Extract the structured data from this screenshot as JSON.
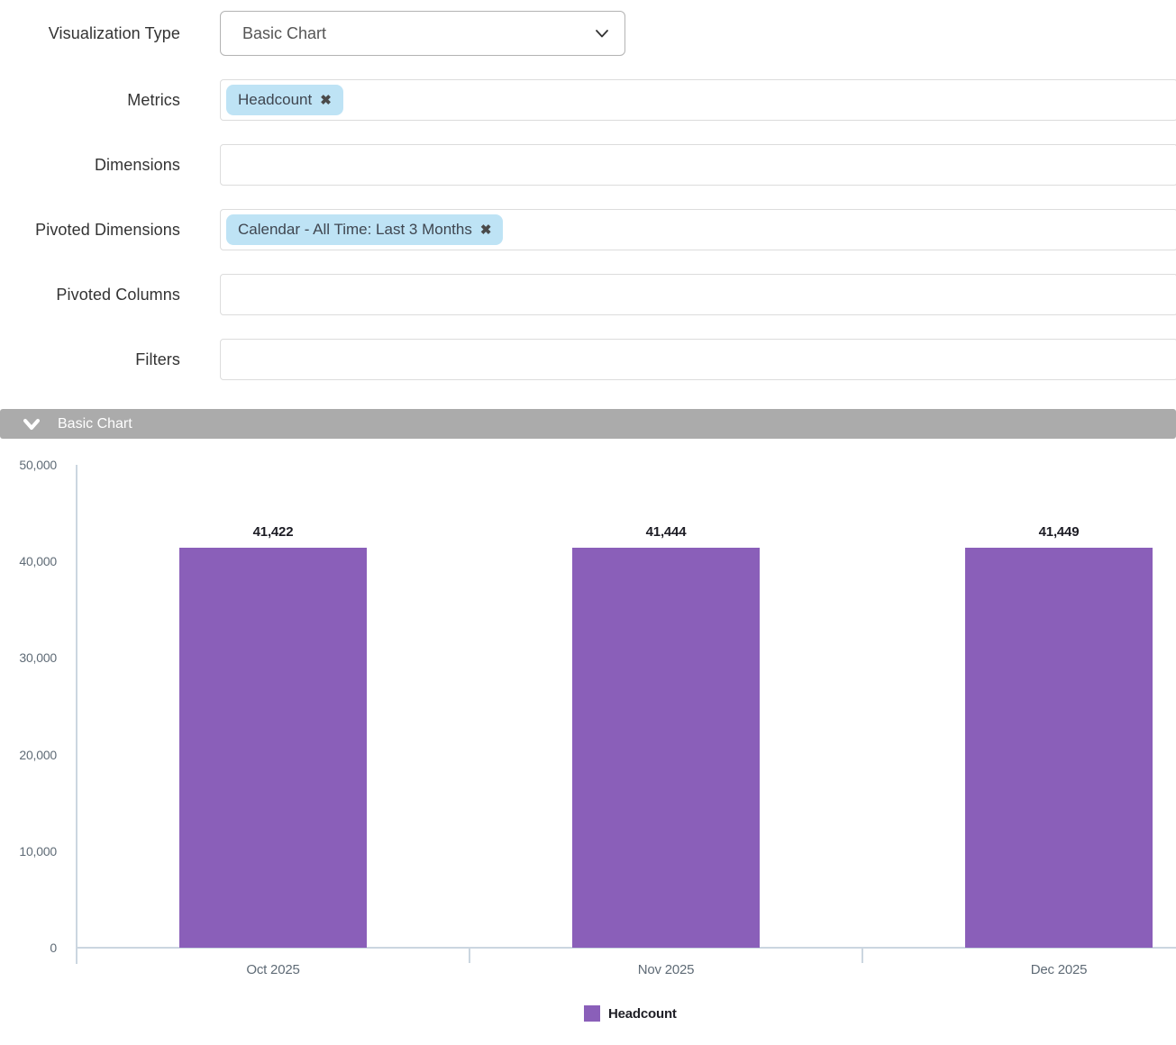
{
  "form": {
    "rows": [
      {
        "label": "Visualization Type",
        "type": "select",
        "value": "Basic Chart"
      },
      {
        "label": "Metrics",
        "type": "tags",
        "tags": [
          "Headcount"
        ]
      },
      {
        "label": "Dimensions",
        "type": "tags",
        "tags": []
      },
      {
        "label": "Pivoted Dimensions",
        "type": "tags",
        "tags": [
          "Calendar - All Time: Last 3 Months"
        ]
      },
      {
        "label": "Pivoted Columns",
        "type": "tags",
        "tags": []
      },
      {
        "label": "Filters",
        "type": "tags",
        "tags": []
      }
    ],
    "remove_icon": "✖"
  },
  "panel": {
    "title": "Basic Chart"
  },
  "chart_data": {
    "type": "bar",
    "title": "",
    "xlabel": "",
    "ylabel": "",
    "categories": [
      "Oct 2025",
      "Nov 2025",
      "Dec 2025"
    ],
    "series": [
      {
        "name": "Headcount",
        "values": [
          41422,
          41444,
          41449
        ],
        "color": "#8a5fb9"
      }
    ],
    "data_labels": [
      "41,422",
      "41,444",
      "41,449"
    ],
    "ylim": [
      0,
      50000
    ],
    "yticks": [
      0,
      10000,
      20000,
      30000,
      40000,
      50000
    ],
    "ytick_labels": [
      "0",
      "10,000",
      "20,000",
      "30,000",
      "40,000",
      "50,000"
    ],
    "grid": false,
    "legend_position": "bottom"
  },
  "colors": {
    "bar": "#8a5fb9",
    "tag_background": "#bee3f5",
    "panel_header_background": "#ababab",
    "axis_line": "#cbd6e0"
  }
}
